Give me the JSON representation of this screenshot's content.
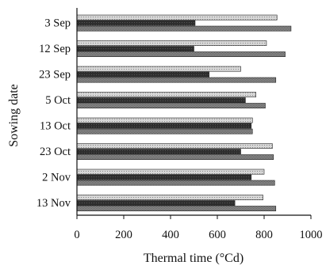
{
  "chart_data": {
    "type": "bar",
    "orientation": "horizontal",
    "xlabel": "Thermal time (°Cd)",
    "ylabel": "Sowing date",
    "xlim": [
      0,
      1000
    ],
    "xticks": [
      0,
      200,
      400,
      600,
      800,
      1000
    ],
    "categories": [
      "3 Sep",
      "12 Sep",
      "23 Sep",
      "5 Oct",
      "13 Oct",
      "23 Oct",
      "2 Nov",
      "13 Nov"
    ],
    "series": [
      {
        "fill": "light-hatch",
        "values": [
          855,
          810,
          700,
          765,
          750,
          835,
          800,
          795
        ]
      },
      {
        "fill": "dark",
        "values": [
          505,
          500,
          565,
          720,
          745,
          700,
          745,
          675
        ]
      },
      {
        "fill": "medium-hatch",
        "values": [
          915,
          890,
          850,
          805,
          750,
          840,
          845,
          850
        ]
      }
    ],
    "grid": false,
    "legend": "none"
  }
}
